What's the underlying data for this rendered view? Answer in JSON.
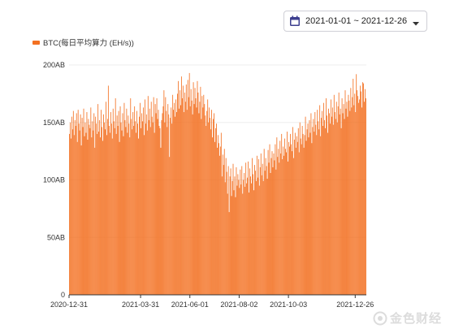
{
  "date_picker": {
    "range": "2021-01-01 ~ 2021-12-26",
    "icon": "calendar-icon",
    "caret_icon": "caret-down-icon"
  },
  "watermark": {
    "text": "金色财经",
    "icon": "jinse-logo-icon"
  },
  "colors": {
    "series": "#F37021",
    "axis": "#333333",
    "grid": "#EDEDED",
    "picker_icon": "#3D3F8F"
  },
  "chart_data": {
    "type": "bar",
    "legend": [
      "BTC(每日平均算力 (EH/s))"
    ],
    "legend_position": "top-left",
    "grid": "horizontal",
    "ylim": [
      0,
      200
    ],
    "yticks": [
      "0",
      "50AB",
      "100AB",
      "150AB",
      "200AB"
    ],
    "ytick_values": [
      0,
      50,
      100,
      150,
      200
    ],
    "xticks": [
      "2020-12-31",
      "2021-03-31",
      "2021-06-01",
      "2021-08-02",
      "2021-10-03",
      "2021-12-26"
    ],
    "xtick_indices": [
      0,
      90,
      152,
      214,
      276,
      360
    ],
    "x_start": "2020-12-31",
    "x_end": "2021-12-26",
    "series": [
      {
        "name": "BTC(每日平均算力 (EH/s))",
        "values": [
          140,
          150,
          136,
          155,
          144,
          160,
          139,
          152,
          147,
          158,
          133,
          161,
          149,
          143,
          157,
          130,
          154,
          146,
          162,
          138,
          150,
          141,
          159,
          135,
          153,
          148,
          145,
          163,
          137,
          151,
          143,
          158,
          128,
          155,
          149,
          140,
          166,
          142,
          152,
          137,
          161,
          146,
          134,
          157,
          150,
          144,
          168,
          139,
          153,
          182,
          147,
          141,
          159,
          149,
          136,
          162,
          151,
          145,
          171,
          140,
          156,
          147,
          160,
          133,
          164,
          150,
          143,
          158,
          138,
          167,
          152,
          146,
          162,
          141,
          156,
          149,
          137,
          171,
          153,
          144,
          159,
          147,
          164,
          151,
          141,
          160,
          149,
          136,
          155,
          167,
          145,
          158,
          151,
          163,
          139,
          170,
          149,
          157,
          143,
          173,
          152,
          162,
          146,
          168,
          155,
          150,
          172,
          141,
          166,
          158,
          171,
          153,
          161,
          147,
          145,
          128,
          152,
          158,
          164,
          178,
          150,
          172,
          160,
          146,
          166,
          157,
          120,
          154,
          163,
          149,
          174,
          161,
          167,
          155,
          170,
          159,
          175,
          186,
          162,
          178,
          165,
          190,
          171,
          182,
          159,
          176,
          168,
          183,
          161,
          187,
          172,
          193,
          164,
          179,
          169,
          157,
          185,
          166,
          180,
          171,
          163,
          186,
          176,
          158,
          168,
          181,
          153,
          173,
          163,
          174,
          166,
          156,
          147,
          160,
          170,
          150,
          163,
          154,
          144,
          161,
          137,
          153,
          158,
          133,
          145,
          149,
          128,
          139,
          132,
          121,
          129,
          141,
          103,
          122,
          113,
          127,
          98,
          119,
          107,
          88,
          112,
          72,
          103,
          110,
          86,
          99,
          114,
          91,
          103,
          85,
          111,
          95,
          105,
          100,
          93,
          109,
          96,
          112,
          88,
          100,
          106,
          94,
          115,
          97,
          102,
          116,
          89,
          110,
          103,
          97,
          119,
          105,
          91,
          113,
          108,
          99,
          121,
          102,
          118,
          95,
          111,
          123,
          104,
          114,
          99,
          127,
          108,
          119,
          112,
          101,
          126,
          115,
          131,
          106,
          119,
          125,
          111,
          123,
          117,
          131,
          109,
          137,
          120,
          127,
          115,
          134,
          123,
          140,
          118,
          129,
          121,
          136,
          127,
          124,
          142,
          116,
          133,
          129,
          140,
          131,
          125,
          146,
          119,
          135,
          141,
          128,
          138,
          133,
          145,
          124,
          150,
          136,
          131,
          147,
          140,
          128,
          139,
          155,
          134,
          144,
          149,
          137,
          152,
          141,
          158,
          132,
          146,
          153,
          142,
          159,
          148,
          139,
          161,
          151,
          144,
          165,
          138,
          154,
          160,
          147,
          167,
          152,
          145,
          171,
          156,
          141,
          162,
          158,
          149,
          170,
          155,
          163,
          148,
          174,
          159,
          153,
          168,
          150,
          164,
          176,
          157,
          162,
          145,
          171,
          158,
          166,
          153,
          178,
          162,
          168,
          155,
          174,
          169,
          160,
          180,
          163,
          172,
          188,
          165,
          175,
          159,
          192,
          178,
          173,
          167,
          170,
          182,
          177,
          163,
          185,
          184,
          168,
          179,
          171
        ]
      }
    ]
  }
}
